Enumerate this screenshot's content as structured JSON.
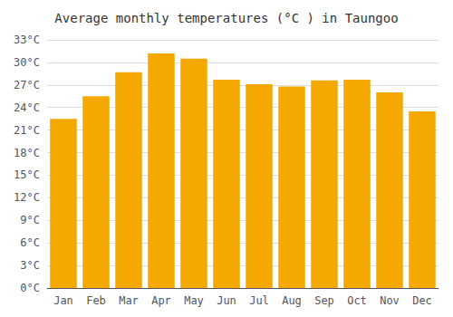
{
  "chart_data": {
    "type": "bar",
    "title": "Average monthly temperatures (°C ) in Taungoo",
    "categories": [
      "Jan",
      "Feb",
      "Mar",
      "Apr",
      "May",
      "Jun",
      "Jul",
      "Aug",
      "Sep",
      "Oct",
      "Nov",
      "Dec"
    ],
    "values": [
      22.5,
      25.5,
      28.7,
      31.2,
      30.5,
      27.7,
      27.1,
      26.8,
      27.6,
      27.7,
      26.0,
      23.5
    ],
    "color": "#F5A800",
    "ylim": [
      0,
      33
    ],
    "yticks": [
      {
        "value": 0,
        "label": "0°C"
      },
      {
        "value": 3,
        "label": "3°C"
      },
      {
        "value": 6,
        "label": "6°C"
      },
      {
        "value": 9,
        "label": "9°C"
      },
      {
        "value": 12,
        "label": "12°C"
      },
      {
        "value": 15,
        "label": "15°C"
      },
      {
        "value": 18,
        "label": "18°C"
      },
      {
        "value": 21,
        "label": "21°C"
      },
      {
        "value": 24,
        "label": "24°C"
      },
      {
        "value": 27,
        "label": "27°C"
      },
      {
        "value": 30,
        "label": "30°C"
      },
      {
        "value": 33,
        "label": "33°C"
      }
    ],
    "grid": true
  }
}
